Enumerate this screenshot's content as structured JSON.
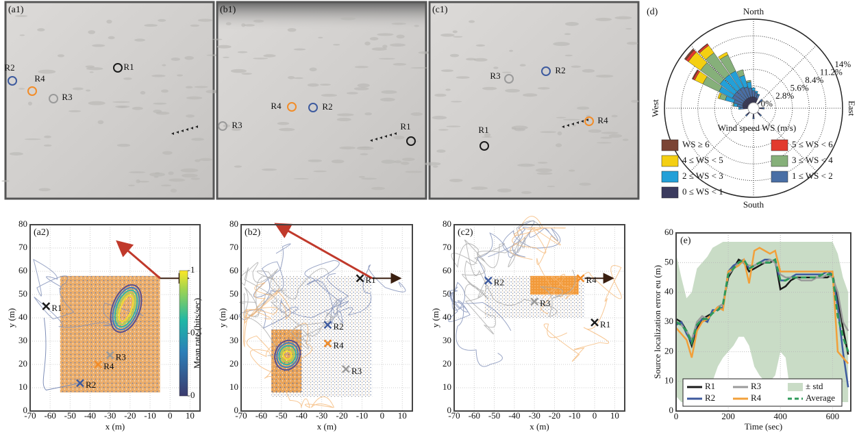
{
  "photo_panels": [
    {
      "label": "(a1)",
      "receivers": [
        "R2",
        "R4",
        "R3",
        "R1"
      ]
    },
    {
      "label": "(b1)",
      "receivers": [
        "R4",
        "R2",
        "R3",
        "R1"
      ]
    },
    {
      "label": "(c1)",
      "receivers": [
        "R3",
        "R2",
        "R4",
        "R1"
      ]
    }
  ],
  "receiver_colors": {
    "R1": "#1a1a1a",
    "R2": "#3d5a9e",
    "R3": "#9a9a9a",
    "R4": "#f28c28"
  },
  "chart_data": [
    {
      "type": "scatter",
      "panel_label": "(a2)",
      "xlabel": "x (m)",
      "ylabel": "y (m)",
      "xlim": [
        -70,
        15
      ],
      "ylim": [
        0,
        80
      ],
      "xticks": [
        -70,
        -60,
        -50,
        -40,
        -30,
        -20,
        -10,
        0,
        10
      ],
      "yticks": [
        0,
        10,
        20,
        30,
        40,
        50,
        60,
        70,
        80
      ],
      "grid": true,
      "colorbar": {
        "label": "Mean rate (hits/sec)",
        "ticks": [
          0,
          0.5,
          1
        ]
      },
      "series": [
        {
          "name": "R1",
          "color": "#1a1a1a",
          "x": [
            -62
          ],
          "y": [
            45
          ]
        },
        {
          "name": "R2",
          "color": "#3d5a9e",
          "x": [
            -45
          ],
          "y": [
            12
          ]
        },
        {
          "name": "R3",
          "color": "#9a9a9a",
          "x": [
            -30
          ],
          "y": [
            24
          ]
        },
        {
          "name": "R4",
          "color": "#f28c28",
          "x": [
            -36
          ],
          "y": [
            20
          ]
        }
      ]
    },
    {
      "type": "scatter",
      "panel_label": "(b2)",
      "xlabel": "x (m)",
      "ylabel": "y (m)",
      "xlim": [
        -70,
        15
      ],
      "ylim": [
        0,
        80
      ],
      "xticks": [
        -70,
        -60,
        -50,
        -40,
        -30,
        -20,
        -10,
        0,
        10
      ],
      "yticks": [
        0,
        10,
        20,
        30,
        40,
        50,
        60,
        70,
        80
      ],
      "grid": true,
      "series": [
        {
          "name": "R1",
          "color": "#1a1a1a",
          "x": [
            -11
          ],
          "y": [
            57
          ]
        },
        {
          "name": "R2",
          "color": "#3d5a9e",
          "x": [
            -27
          ],
          "y": [
            37
          ]
        },
        {
          "name": "R3",
          "color": "#9a9a9a",
          "x": [
            -18
          ],
          "y": [
            18
          ]
        },
        {
          "name": "R4",
          "color": "#f28c28",
          "x": [
            -27
          ],
          "y": [
            29
          ]
        }
      ]
    },
    {
      "type": "scatter",
      "panel_label": "(c2)",
      "xlabel": "x (m)",
      "ylabel": "y (m)",
      "xlim": [
        -70,
        15
      ],
      "ylim": [
        0,
        80
      ],
      "xticks": [
        -70,
        -60,
        -50,
        -40,
        -30,
        -20,
        -10,
        0,
        10
      ],
      "yticks": [
        0,
        10,
        20,
        30,
        40,
        50,
        60,
        70,
        80
      ],
      "grid": true,
      "series": [
        {
          "name": "R1",
          "color": "#1a1a1a",
          "x": [
            0
          ],
          "y": [
            38
          ]
        },
        {
          "name": "R2",
          "color": "#3d5a9e",
          "x": [
            -53
          ],
          "y": [
            56
          ]
        },
        {
          "name": "R3",
          "color": "#9a9a9a",
          "x": [
            -30
          ],
          "y": [
            47
          ]
        },
        {
          "name": "R4",
          "color": "#f28c28",
          "x": [
            -7
          ],
          "y": [
            57
          ]
        }
      ]
    },
    {
      "type": "wind-rose",
      "panel_label": "(d)",
      "radius_label": "Wind speed WS (m/s)",
      "compass": [
        "North",
        "East",
        "South",
        "West"
      ],
      "rlim": [
        0,
        14
      ],
      "rticks": [
        {
          "value": 0,
          "label": "0%"
        },
        {
          "value": 2.8,
          "label": "2.8%"
        },
        {
          "value": 5.6,
          "label": "5.6%"
        },
        {
          "value": 8.4,
          "label": "8.4%"
        },
        {
          "value": 11.2,
          "label": "11.2%"
        },
        {
          "value": 14,
          "label": "14%"
        }
      ],
      "directions": [
        270,
        280,
        290,
        300,
        310,
        320,
        330,
        340,
        350,
        0,
        10,
        20,
        45,
        90,
        135,
        180,
        225
      ],
      "series": [
        {
          "name": "0 ≤ WS < 1",
          "color": "#3b3b5e",
          "values": [
            0.8,
            0.9,
            1,
            1,
            1,
            1,
            1,
            1,
            1,
            1,
            0.9,
            0.8,
            0.7,
            0.6,
            0.6,
            0.6,
            0.6
          ]
        },
        {
          "name": "1 ≤ WS < 2",
          "color": "#4a6fa5",
          "values": [
            0.5,
            0.9,
            1.5,
            2,
            2,
            2,
            2,
            1.8,
            1.5,
            1,
            0.8,
            0.6,
            0.4,
            0.3,
            0.3,
            0.3,
            0.3
          ]
        },
        {
          "name": "2 ≤ WS < 3",
          "color": "#23a0d8",
          "values": [
            0.3,
            0.6,
            1.5,
            2.5,
            3,
            3,
            3,
            2,
            1,
            0.5,
            0.3,
            0.2,
            0,
            0,
            0,
            0,
            0
          ]
        },
        {
          "name": "3 ≤ WS < 4",
          "color": "#86b07a",
          "values": [
            0,
            0.2,
            1,
            3,
            4,
            4.5,
            3,
            1,
            0.3,
            0,
            0,
            0,
            0,
            0,
            0,
            0,
            0
          ]
        },
        {
          "name": "4 ≤ WS < 5",
          "color": "#f4cf12",
          "values": [
            0,
            0,
            0.3,
            1.5,
            2.5,
            1.5,
            0.5,
            0,
            0,
            0,
            0,
            0,
            0,
            0,
            0,
            0,
            0
          ]
        },
        {
          "name": "5 ≤ WS < 6",
          "color": "#e23a2e",
          "values": [
            0,
            0,
            0,
            0.3,
            0.5,
            0.3,
            0,
            0,
            0,
            0,
            0,
            0,
            0,
            0,
            0,
            0,
            0
          ]
        },
        {
          "name": "WS ≥ 6",
          "color": "#7b4434",
          "values": [
            0,
            0,
            0,
            0.2,
            0.3,
            0.1,
            0,
            0,
            0,
            0,
            0,
            0,
            0,
            0,
            0,
            0,
            0
          ]
        }
      ]
    },
    {
      "type": "line",
      "panel_label": "(e)",
      "xlabel": "Time (sec)",
      "ylabel": "Source localization error eu (m)",
      "xlim": [
        0,
        670
      ],
      "xticks": [
        0,
        200,
        400,
        600
      ],
      "ylim": [
        0,
        60
      ],
      "yticks": [
        0,
        10,
        20,
        30,
        40,
        50,
        60
      ],
      "grid": true,
      "x": [
        0,
        20,
        40,
        60,
        80,
        100,
        120,
        140,
        160,
        180,
        200,
        220,
        240,
        260,
        280,
        300,
        320,
        340,
        360,
        380,
        400,
        420,
        440,
        460,
        480,
        500,
        520,
        540,
        560,
        580,
        600,
        620,
        640,
        660
      ],
      "band": {
        "name": "± std",
        "color": "#c9dcc6",
        "lower": [
          5,
          3,
          3,
          3,
          5,
          5,
          8,
          10,
          15,
          18,
          20,
          22,
          25,
          25,
          22,
          15,
          12,
          10,
          10,
          12,
          20,
          18,
          5,
          5,
          5,
          3,
          3,
          3,
          3,
          3,
          3,
          3,
          3,
          3
        ],
        "upper": [
          53,
          45,
          38,
          40,
          48,
          50,
          52,
          55,
          56,
          57,
          57,
          57,
          57,
          57,
          57,
          57,
          57,
          57,
          57,
          57,
          57,
          57,
          57,
          57,
          57,
          57,
          57,
          57,
          57,
          57,
          57,
          53,
          45,
          40
        ]
      },
      "series": [
        {
          "name": "R1",
          "color": "#1a1a1a",
          "values": [
            31,
            30,
            27,
            22,
            28,
            31,
            32,
            33,
            35,
            36,
            45,
            48,
            51,
            50,
            47,
            48,
            49,
            50,
            50,
            51,
            41,
            42,
            44,
            45,
            45,
            45,
            45,
            45,
            45,
            45,
            46,
            38,
            28,
            19
          ]
        },
        {
          "name": "R2",
          "color": "#3d5a9e",
          "values": [
            29,
            30,
            26,
            23,
            29,
            31,
            30,
            34,
            34,
            35,
            47,
            49,
            50,
            51,
            48,
            49,
            50,
            51,
            51,
            50,
            44,
            44,
            45,
            46,
            46,
            46,
            46,
            46,
            46,
            47,
            46,
            35,
            20,
            8
          ]
        },
        {
          "name": "R3",
          "color": "#9a9a9a",
          "values": [
            30,
            29,
            27,
            24,
            30,
            32,
            31,
            33,
            35,
            36,
            46,
            48,
            50,
            50,
            49,
            49,
            50,
            50,
            51,
            50,
            46,
            45,
            45,
            45,
            44,
            44,
            44,
            45,
            45,
            46,
            45,
            40,
            30,
            27
          ]
        },
        {
          "name": "R4",
          "color": "#f2a03a",
          "values": [
            28,
            26,
            24,
            18,
            27,
            30,
            31,
            33,
            35,
            34,
            47,
            48,
            49,
            51,
            43,
            54,
            55,
            54,
            53,
            54,
            47,
            47,
            47,
            47,
            47,
            47,
            47,
            47,
            47,
            47,
            47,
            20,
            18,
            16
          ]
        },
        {
          "name": "Average",
          "color": "#2e9a5a",
          "dash": true,
          "values": [
            30,
            29,
            27,
            23,
            29,
            31,
            31,
            33,
            34,
            36,
            46,
            48,
            50,
            51,
            48,
            49,
            50,
            50,
            50,
            51,
            44,
            44,
            45,
            45,
            45,
            45,
            45,
            45,
            46,
            46,
            46,
            32,
            25,
            20
          ]
        }
      ]
    }
  ]
}
